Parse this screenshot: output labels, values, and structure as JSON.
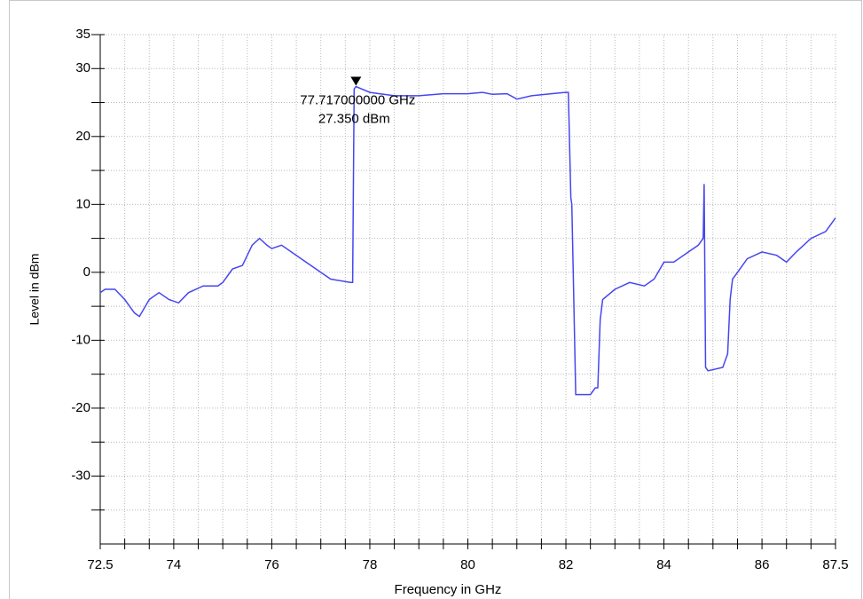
{
  "chart_data": {
    "type": "line",
    "x_label": "Frequency in GHz",
    "y_label": "Level in dBm",
    "x": [
      72.5,
      72.6,
      72.8,
      73.0,
      73.2,
      73.3,
      73.5,
      73.7,
      73.9,
      74.1,
      74.3,
      74.6,
      74.9,
      75.0,
      75.2,
      75.4,
      75.6,
      75.75,
      75.9,
      76.0,
      76.2,
      76.6,
      77.0,
      77.2,
      77.6,
      77.65,
      77.68,
      77.717,
      78.0,
      78.5,
      79.0,
      79.5,
      80.0,
      80.3,
      80.5,
      80.8,
      81.0,
      81.3,
      81.7,
      82.0,
      82.05,
      82.1,
      82.12,
      82.15,
      82.2,
      82.5,
      82.6,
      82.65,
      82.7,
      82.75,
      83.0,
      83.3,
      83.6,
      83.8,
      84.0,
      84.2,
      84.5,
      84.7,
      84.8,
      84.82,
      84.85,
      84.9,
      85.2,
      85.3,
      85.35,
      85.4,
      85.5,
      85.7,
      86.0,
      86.3,
      86.5,
      86.7,
      87.0,
      87.3,
      87.5
    ],
    "values": [
      -3,
      -2.5,
      -2.5,
      -4,
      -6,
      -6.5,
      -4,
      -3,
      -4,
      -4.5,
      -3,
      -2,
      -2,
      -1.5,
      0.5,
      1,
      4,
      5,
      4,
      3.5,
      4,
      2,
      0,
      -1,
      -1.5,
      -1.5,
      27,
      27.35,
      26.5,
      26,
      26,
      26.3,
      26.3,
      26.5,
      26.2,
      26.3,
      25.5,
      26,
      26.3,
      26.5,
      26.5,
      11,
      10,
      0,
      -18,
      -18,
      -17,
      -17,
      -7,
      -4,
      -2.5,
      -1.5,
      -2,
      -1,
      1.5,
      1.5,
      3,
      4,
      5,
      13,
      -14,
      -14.5,
      -14,
      -12,
      -4,
      -1,
      0,
      2,
      3,
      2.5,
      1.5,
      3,
      5,
      6,
      8
    ],
    "color": "#4646f0",
    "xlim": [
      72.5,
      87.5
    ],
    "ylim": [
      -40,
      35
    ],
    "xticks": [
      72.5,
      74,
      76,
      78,
      80,
      82,
      84,
      86,
      87.5
    ],
    "xminorticks": [
      73,
      73.5,
      74.5,
      75,
      75.5,
      76.5,
      77,
      77.5,
      78.5,
      79,
      79.5,
      80.5,
      81,
      81.5,
      82.5,
      83,
      83.5,
      84.5,
      85,
      85.5,
      86.5,
      87
    ],
    "yticks": [
      35,
      30,
      20,
      10,
      0,
      -10,
      -20,
      -30
    ],
    "yminorticks": [
      25,
      15,
      5,
      -5,
      -15,
      -25,
      -35
    ],
    "grid": true,
    "marker": {
      "x": 77.717,
      "y": 27.35,
      "labels": [
        "77.717000000 GHz",
        "27.350 dBm"
      ]
    }
  }
}
